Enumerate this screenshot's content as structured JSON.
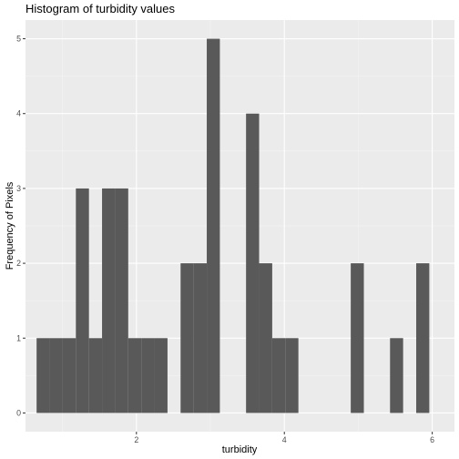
{
  "chart_data": {
    "type": "bar",
    "title": "Histogram of turbidity values",
    "xlabel": "turbidity",
    "ylabel": "Frequency of Pixels",
    "xlim": [
      0.5,
      6.3
    ],
    "ylim": [
      -0.25,
      5.25
    ],
    "x_ticks": [
      2,
      4,
      6
    ],
    "y_ticks": [
      0,
      1,
      2,
      3,
      4,
      5
    ],
    "grid": true,
    "bin_width": 0.177,
    "bins": [
      {
        "x0": 0.65,
        "x1": 0.827,
        "count": 1
      },
      {
        "x0": 0.827,
        "x1": 1.004,
        "count": 1
      },
      {
        "x0": 1.004,
        "x1": 1.181,
        "count": 1
      },
      {
        "x0": 1.181,
        "x1": 1.358,
        "count": 3
      },
      {
        "x0": 1.358,
        "x1": 1.535,
        "count": 1
      },
      {
        "x0": 1.535,
        "x1": 1.712,
        "count": 3
      },
      {
        "x0": 1.712,
        "x1": 1.889,
        "count": 3
      },
      {
        "x0": 1.889,
        "x1": 2.066,
        "count": 1
      },
      {
        "x0": 2.066,
        "x1": 2.243,
        "count": 1
      },
      {
        "x0": 2.243,
        "x1": 2.42,
        "count": 1
      },
      {
        "x0": 2.42,
        "x1": 2.597,
        "count": 0
      },
      {
        "x0": 2.597,
        "x1": 2.774,
        "count": 2
      },
      {
        "x0": 2.774,
        "x1": 2.951,
        "count": 2
      },
      {
        "x0": 2.951,
        "x1": 3.128,
        "count": 5
      },
      {
        "x0": 3.128,
        "x1": 3.305,
        "count": 0
      },
      {
        "x0": 3.305,
        "x1": 3.482,
        "count": 0
      },
      {
        "x0": 3.482,
        "x1": 3.659,
        "count": 4
      },
      {
        "x0": 3.659,
        "x1": 3.836,
        "count": 2
      },
      {
        "x0": 3.836,
        "x1": 4.013,
        "count": 1
      },
      {
        "x0": 4.013,
        "x1": 4.19,
        "count": 1
      },
      {
        "x0": 4.19,
        "x1": 4.367,
        "count": 0
      },
      {
        "x0": 4.367,
        "x1": 4.544,
        "count": 0
      },
      {
        "x0": 4.544,
        "x1": 4.721,
        "count": 0
      },
      {
        "x0": 4.721,
        "x1": 4.898,
        "count": 0
      },
      {
        "x0": 4.898,
        "x1": 5.075,
        "count": 2
      },
      {
        "x0": 5.075,
        "x1": 5.252,
        "count": 0
      },
      {
        "x0": 5.252,
        "x1": 5.429,
        "count": 0
      },
      {
        "x0": 5.429,
        "x1": 5.606,
        "count": 1
      },
      {
        "x0": 5.606,
        "x1": 5.783,
        "count": 0
      },
      {
        "x0": 5.783,
        "x1": 5.96,
        "count": 2
      }
    ],
    "colors": {
      "bar": "#595959",
      "panel": "#ebebeb",
      "grid_major": "#ffffff",
      "grid_minor": "#f5f5f5",
      "tick_text": "#4d4d4d"
    }
  }
}
